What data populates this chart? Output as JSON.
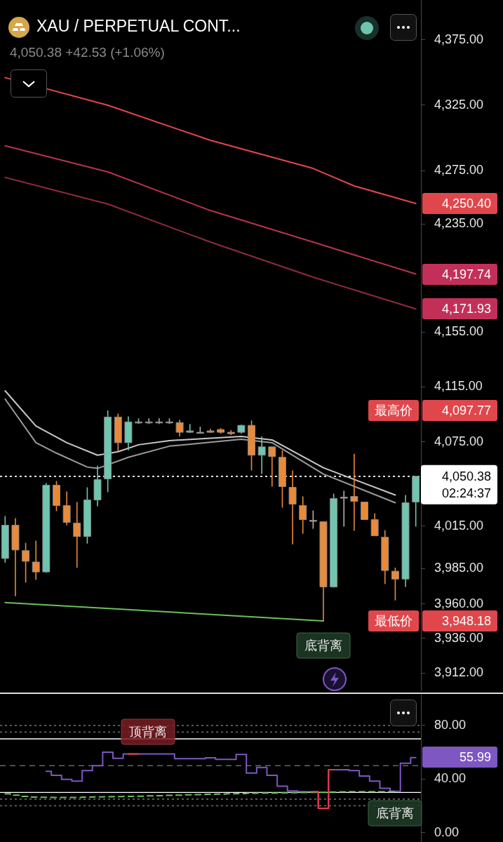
{
  "chart_data": [
    {
      "type": "candlestick",
      "title": "XAU / PERPETUAL CONT...",
      "subtitle": "4,050.38 +42.53 (+1.06%)",
      "categories": [
        null,
        null,
        null,
        null,
        null,
        null,
        null,
        null,
        null,
        null,
        null,
        null,
        null,
        null,
        null,
        null,
        null,
        null,
        null,
        null,
        null,
        null,
        null,
        null,
        null,
        null,
        null,
        null,
        null,
        null,
        null,
        null,
        null,
        null,
        null,
        null,
        null,
        null,
        null,
        null,
        null
      ],
      "ohlc": [
        [
          3992,
          4022,
          3989,
          4015.5
        ],
        [
          4015.5,
          4020.5,
          3965.5,
          3998
        ],
        [
          3997.5,
          4003,
          3975,
          3990
        ],
        [
          3989.5,
          4004.5,
          3977,
          3982.5
        ],
        [
          3982.5,
          4045.5,
          3982,
          4044
        ],
        [
          4044,
          4047,
          4025.5,
          4029.5
        ],
        [
          4029.5,
          4039.5,
          4015.5,
          4017.5
        ],
        [
          4017,
          4032,
          3985.5,
          4007.5
        ],
        [
          4007.5,
          4042.5,
          4002.5,
          4033.5
        ],
        [
          4033.5,
          4058,
          4029,
          4048
        ],
        [
          4048.5,
          4097.77,
          4039,
          4093
        ],
        [
          4093,
          4095.5,
          4068,
          4074.5
        ],
        [
          4074.5,
          4093.5,
          4069,
          4089.5
        ],
        [
          4089.5,
          4092,
          4088,
          4089.5
        ],
        [
          4089.5,
          4092,
          4088,
          4089.5
        ],
        [
          4089.5,
          4092,
          4088,
          4089.5
        ],
        [
          4089.5,
          4092,
          4088,
          4089.5
        ],
        [
          4089,
          4091,
          4079,
          4082
        ],
        [
          4082,
          4088,
          4081.5,
          4083
        ],
        [
          4082,
          4086,
          4081.5,
          4082
        ],
        [
          4083,
          4084.5,
          4081.5,
          4082
        ],
        [
          4084,
          4085,
          4081,
          4082
        ],
        [
          4082,
          4083.5,
          4080,
          4081
        ],
        [
          4082,
          4087.5,
          4081,
          4087
        ],
        [
          4087,
          4090.5,
          4054.5,
          4065.5
        ],
        [
          4065.5,
          4079,
          4052,
          4071.5
        ],
        [
          4071.5,
          4071.5,
          4043,
          4064.5
        ],
        [
          4064,
          4069,
          4028,
          4043
        ],
        [
          4042.5,
          4054.5,
          4002,
          4030.5
        ],
        [
          4029.5,
          4036,
          4009.5,
          4019.5
        ],
        [
          4019,
          4026,
          4013,
          4019
        ],
        [
          4018,
          4018,
          3948.18,
          3972
        ],
        [
          3972,
          4038,
          3971.5,
          4034.5
        ],
        [
          4035.5,
          4040,
          4014.5,
          4035.5
        ],
        [
          4036,
          4066.5,
          4011.5,
          4032.5
        ],
        [
          4032,
          4032,
          4019.5,
          4019.5
        ],
        [
          4019.5,
          4024,
          4008,
          4008
        ],
        [
          4007,
          4012,
          3974,
          3983.5
        ],
        [
          3983,
          3985.5,
          3962.5,
          3977.5
        ],
        [
          3977.5,
          4037,
          3972,
          4031.5
        ],
        [
          4032,
          4050.38,
          4014.5,
          4050.38
        ]
      ],
      "series": [
        {
          "type": "line",
          "color": "#e0474c",
          "values": [
            4346,
            null,
            null,
            null,
            null,
            null,
            null,
            null,
            null,
            null,
            4324.8,
            null,
            null,
            null,
            null,
            null,
            null,
            null,
            null,
            null,
            4298.1,
            null,
            null,
            null,
            null,
            null,
            null,
            null,
            null,
            null,
            4276.8,
            null,
            null,
            null,
            4263.6,
            null,
            null,
            null,
            null,
            null,
            4250.4
          ]
        },
        {
          "type": "line",
          "color": "#b8334f",
          "values": [
            4294,
            null,
            null,
            null,
            null,
            null,
            null,
            null,
            null,
            null,
            4274.2,
            null,
            null,
            null,
            null,
            null,
            null,
            null,
            null,
            null,
            4245.1,
            null,
            null,
            null,
            null,
            null,
            null,
            null,
            null,
            null,
            4221.5,
            null,
            null,
            null,
            null,
            null,
            null,
            null,
            null,
            null,
            4197.74
          ]
        },
        {
          "type": "line",
          "color": "#8e2a3e",
          "values": [
            4270,
            null,
            null,
            null,
            null,
            null,
            null,
            null,
            null,
            null,
            4250,
            null,
            null,
            null,
            null,
            null,
            null,
            null,
            null,
            null,
            4221.5,
            null,
            null,
            null,
            null,
            null,
            null,
            null,
            null,
            null,
            4195.4,
            null,
            null,
            null,
            null,
            null,
            null,
            null,
            null,
            null,
            4171.93
          ]
        },
        {
          "type": "line",
          "color": "#c8c8c8",
          "values": [
            4112,
            null,
            null,
            4086.5,
            null,
            null,
            4074.5,
            null,
            null,
            4065.5,
            null,
            4068,
            null,
            4073,
            null,
            null,
            4076,
            null,
            null,
            null,
            null,
            null,
            null,
            4079,
            null,
            null,
            4076.5,
            null,
            null,
            null,
            null,
            4056.5,
            null,
            null,
            null,
            null,
            null,
            null,
            4037,
            null,
            null
          ]
        },
        {
          "type": "line",
          "color": "#9a9a9a",
          "values": [
            4106,
            null,
            null,
            4074.5,
            null,
            4067,
            null,
            null,
            4057,
            4056,
            null,
            null,
            4064,
            null,
            null,
            null,
            4072,
            null,
            null,
            null,
            null,
            null,
            null,
            4077,
            null,
            null,
            4074.5,
            null,
            null,
            null,
            null,
            4052,
            null,
            null,
            null,
            null,
            null,
            null,
            4031.5,
            null,
            null
          ]
        },
        {
          "type": "line",
          "color": "#6bbf5a",
          "values": [
            3961,
            null,
            null,
            null,
            null,
            null,
            null,
            null,
            null,
            null,
            null,
            null,
            null,
            null,
            null,
            null,
            null,
            null,
            null,
            null,
            null,
            null,
            null,
            null,
            null,
            null,
            null,
            null,
            null,
            null,
            null,
            3948.18,
            null,
            null,
            null,
            null,
            null,
            null,
            null,
            null,
            null
          ]
        }
      ],
      "ylim": [
        3899.5,
        4406
      ],
      "log": true,
      "yticks": [
        {
          "value": 4375,
          "label": "4,375.00"
        },
        {
          "value": 4325,
          "label": "4,325.00"
        },
        {
          "value": 4275,
          "label": "4,275.00"
        },
        {
          "value": 4235,
          "label": "4,235.00"
        },
        {
          "value": 4155,
          "label": "4,155.00"
        },
        {
          "value": 4115,
          "label": "4,115.00"
        },
        {
          "value": 4075,
          "label": "4,075.00"
        },
        {
          "value": 4015,
          "label": "4,015.00"
        },
        {
          "value": 3985,
          "label": "3,985.00"
        },
        {
          "value": 3960,
          "label": "3,960.00"
        },
        {
          "value": 3936,
          "label": "3,936.00"
        },
        {
          "value": 3912,
          "label": "3,912.00"
        }
      ],
      "ref_lines": [
        {
          "axis": "y",
          "value": 4050.38,
          "label": "4,050.38\n02:24:37",
          "color": "#ffffff",
          "line_style": "dotted"
        }
      ],
      "annotations": [
        "底背离",
        "4,097.77",
        "最高价",
        "3,948.18",
        "最低价",
        "4,250.40",
        "4,197.74",
        "4,171.93"
      ],
      "tick_labels": "y",
      "grid": false,
      "legend": false
    },
    {
      "type": "step",
      "categories": [
        null,
        null,
        null,
        null,
        null,
        null,
        null,
        null,
        null,
        null,
        null,
        null,
        null,
        null,
        null,
        null,
        null,
        null,
        null,
        null,
        null,
        null,
        null,
        null,
        null,
        null,
        null,
        null,
        null,
        null,
        null,
        null,
        null,
        null,
        null,
        null,
        null,
        null,
        null,
        null,
        null
      ],
      "series": [
        {
          "color": "#7e57c2",
          "values": [
            null,
            null,
            null,
            null,
            45.8,
            42.7,
            39.8,
            38.4,
            46.3,
            49.9,
            60,
            55.4,
            58.8,
            58.8,
            58.8,
            58.8,
            58.8,
            55.2,
            55.2,
            55.2,
            55.9,
            54.7,
            54.7,
            58.3,
            44.4,
            48.7,
            42.7,
            34.7,
            31.1,
            30.6,
            30.6,
            18.1,
            47,
            47,
            46.3,
            42.2,
            38.4,
            33.1,
            30.9,
            51.8,
            55.99
          ]
        },
        {
          "type": "step",
          "color": "#6bbf5a",
          "line_style": "dashed",
          "values": [
            29,
            28,
            27,
            26.5,
            26.4,
            26.3,
            26.3,
            26.3,
            26.5,
            26.6,
            26.8,
            26.9,
            27,
            27.2,
            27.4,
            27.6,
            27.8,
            28,
            28.2,
            28.4,
            28.6,
            28.8,
            29,
            29.2,
            29.4,
            29.5,
            29.6,
            29.7,
            29.8,
            29.9,
            30,
            30.1,
            30.3,
            30.4,
            30.6,
            30.6,
            30.6,
            30.6,
            30.6,
            null,
            null
          ]
        },
        {
          "type": "step",
          "color": "#f23645",
          "values": [
            null,
            null,
            null,
            null,
            null,
            null,
            null,
            null,
            null,
            null,
            null,
            null,
            58.8,
            58.8,
            null,
            null,
            null,
            null,
            null,
            null,
            null,
            null,
            null,
            null,
            null,
            null,
            null,
            null,
            null,
            null,
            30.6,
            18.1,
            47,
            null,
            null,
            null,
            null,
            null,
            null,
            null,
            null
          ]
        }
      ],
      "ylim": [
        -7,
        103
      ],
      "yticks": [
        {
          "value": 80,
          "label": "80.00"
        },
        {
          "value": 40,
          "label": "40.00"
        },
        {
          "value": 0,
          "label": "0.00"
        }
      ],
      "ref_lines": [
        {
          "axis": "y",
          "value": 80,
          "line_style": "dotted",
          "color": "#666666"
        },
        {
          "axis": "y",
          "value": 75,
          "line_style": "dotted",
          "color": "#666666"
        },
        {
          "axis": "y",
          "value": 70,
          "line_style": "solid",
          "color": "#ffffff"
        },
        {
          "axis": "y",
          "value": 50,
          "line_style": "dashed",
          "color": "#666666"
        },
        {
          "axis": "y",
          "value": 30,
          "line_style": "solid",
          "color": "#ffffff"
        },
        {
          "axis": "y",
          "value": 25,
          "line_style": "dotted",
          "color": "#666666"
        },
        {
          "axis": "y",
          "value": 20,
          "line_style": "dotted",
          "color": "#666666"
        }
      ],
      "annotations": [
        "顶背离",
        "底背离",
        "55.99"
      ],
      "tick_labels": "y",
      "grid": false,
      "legend": false
    }
  ]
}
